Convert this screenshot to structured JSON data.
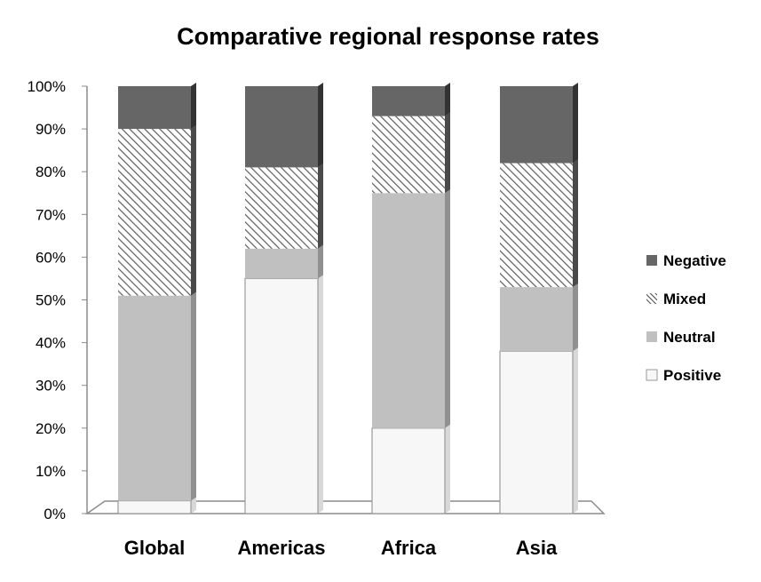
{
  "chart_data": {
    "type": "bar",
    "stacked": true,
    "style": "3d-stacked-100-percent",
    "title": "Comparative regional response rates",
    "xlabel": "",
    "ylabel": "",
    "categories": [
      "Global",
      "Americas",
      "Africa",
      "Asia"
    ],
    "ylim": [
      0,
      100
    ],
    "yticks": [
      "0%",
      "10%",
      "20%",
      "30%",
      "40%",
      "50%",
      "60%",
      "70%",
      "80%",
      "90%",
      "100%"
    ],
    "series": [
      {
        "name": "Positive",
        "values": [
          3,
          55,
          20,
          38
        ],
        "color": "#f7f7f7",
        "pattern": "solid"
      },
      {
        "name": "Neutral",
        "values": [
          48,
          7,
          55,
          15
        ],
        "color": "#c0c0c0",
        "pattern": "solid"
      },
      {
        "name": "Mixed",
        "values": [
          39,
          19,
          18,
          29
        ],
        "color": "#5c5c5c",
        "pattern": "diagonal-hatch"
      },
      {
        "name": "Negative",
        "values": [
          10,
          19,
          7,
          18
        ],
        "color": "#666666",
        "pattern": "solid"
      }
    ],
    "legend": {
      "placement": "right",
      "order": [
        "Negative",
        "Mixed",
        "Neutral",
        "Positive"
      ]
    },
    "grid": false
  }
}
